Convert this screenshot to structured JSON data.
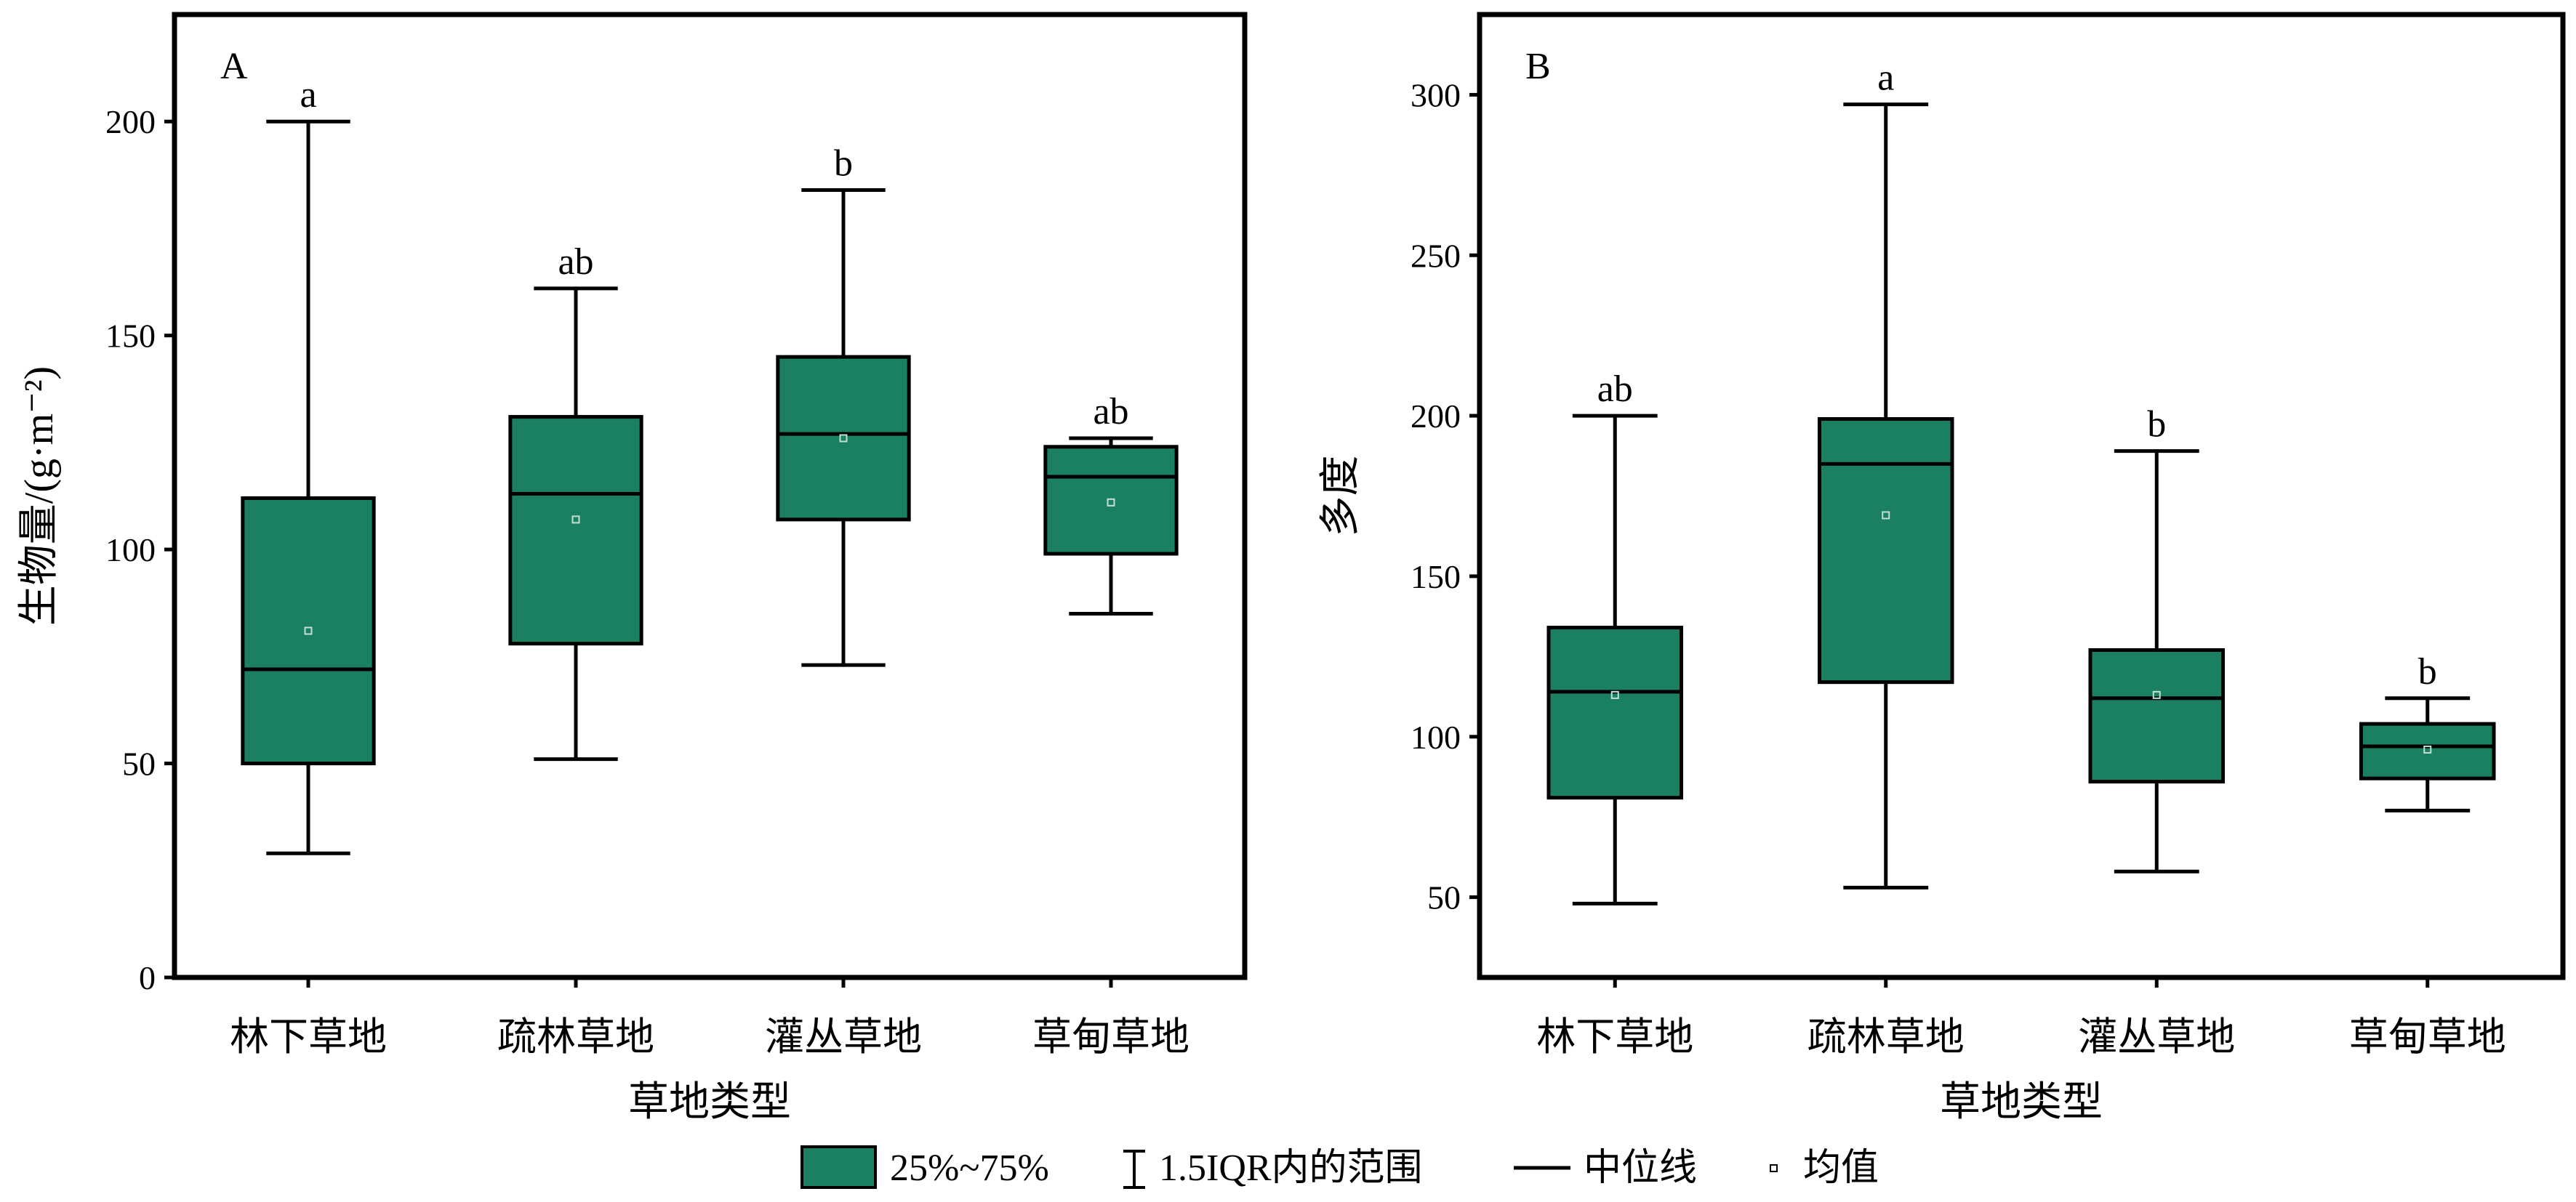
{
  "chart_data": [
    {
      "type": "box",
      "panel_label": "A",
      "xlabel": "草地类型",
      "ylabel": "生物量/(g·m⁻²)",
      "ylim": [
        0,
        225
      ],
      "yticks": [
        0,
        50,
        100,
        150,
        200
      ],
      "categories": [
        "林下草地",
        "疏林草地",
        "灌丛草地",
        "草甸草地"
      ],
      "boxes": [
        {
          "whisker_low": 29,
          "q1": 50,
          "median": 72,
          "mean": 81,
          "q3": 112,
          "whisker_high": 200,
          "significance": "a"
        },
        {
          "whisker_low": 51,
          "q1": 78,
          "median": 113,
          "mean": 107,
          "q3": 131,
          "whisker_high": 161,
          "significance": "ab"
        },
        {
          "whisker_low": 73,
          "q1": 107,
          "median": 127,
          "mean": 126,
          "q3": 145,
          "whisker_high": 184,
          "significance": "b"
        },
        {
          "whisker_low": 85,
          "q1": 99,
          "median": 117,
          "mean": 111,
          "q3": 124,
          "whisker_high": 126,
          "significance": "ab"
        }
      ]
    },
    {
      "type": "box",
      "panel_label": "B",
      "xlabel": "草地类型",
      "ylabel": "多度",
      "ylim": [
        25,
        325
      ],
      "yticks": [
        50,
        100,
        150,
        200,
        250,
        300
      ],
      "categories": [
        "林下草地",
        "疏林草地",
        "灌丛草地",
        "草甸草地"
      ],
      "boxes": [
        {
          "whisker_low": 48,
          "q1": 81,
          "median": 114,
          "mean": 113,
          "q3": 134,
          "whisker_high": 200,
          "significance": "ab"
        },
        {
          "whisker_low": 53,
          "q1": 117,
          "median": 185,
          "mean": 169,
          "q3": 199,
          "whisker_high": 297,
          "significance": "a"
        },
        {
          "whisker_low": 58,
          "q1": 86,
          "median": 112,
          "mean": 113,
          "q3": 127,
          "whisker_high": 189,
          "significance": "b"
        },
        {
          "whisker_low": 77,
          "q1": 87,
          "median": 97,
          "mean": 96,
          "q3": 104,
          "whisker_high": 112,
          "significance": "b"
        }
      ]
    }
  ],
  "legend": {
    "box": "25%~75%",
    "whisker": "1.5IQR内的范围",
    "median": "中位线",
    "mean": "均值"
  },
  "colors": {
    "box_fill": "#1b7f62",
    "stroke": "#000000"
  }
}
